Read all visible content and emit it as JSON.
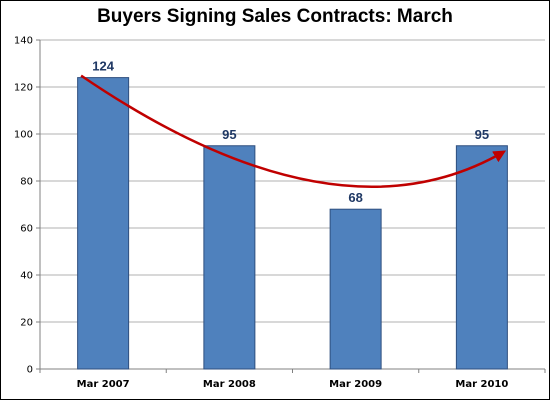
{
  "chart_data": {
    "type": "bar",
    "title": "Buyers Signing Sales Contracts:  March",
    "xlabel": "",
    "ylabel": "",
    "categories": [
      "Mar 2007",
      "Mar 2008",
      "Mar 2009",
      "Mar 2010"
    ],
    "values": [
      124,
      95,
      68,
      95
    ],
    "data_labels": [
      "124",
      "95",
      "68",
      "95"
    ],
    "ylim": [
      0,
      140
    ],
    "y_ticks": [
      0,
      20,
      40,
      60,
      80,
      100,
      120,
      140
    ],
    "y_tick_labels": [
      "0",
      "20",
      "40",
      "60",
      "80",
      "100",
      "120",
      "140"
    ],
    "grid": true,
    "legend": "none",
    "annotation": "trend-arrow",
    "colors": {
      "bar": "#4f81bd",
      "bar_border": "#2f4f7f",
      "data_label": "#1f3864",
      "arrow": "#c00000",
      "grid": "#b0b0b0",
      "axis": "#808080"
    }
  }
}
